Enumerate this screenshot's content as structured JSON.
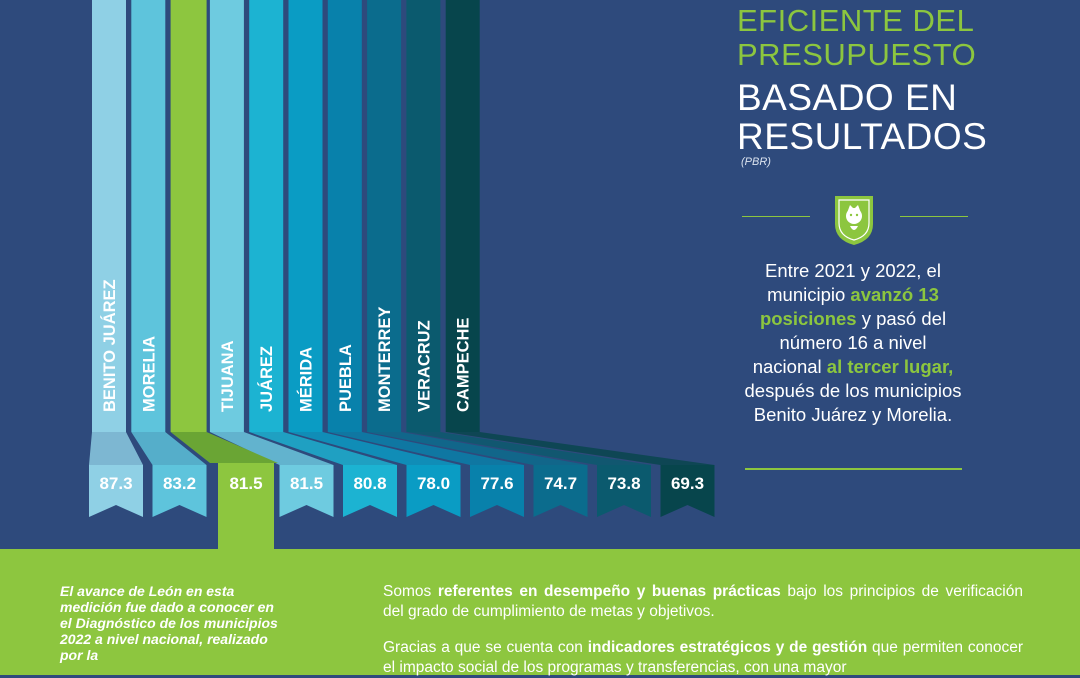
{
  "title": {
    "line1": "EFICIENTE DEL",
    "line2": "PRESUPUESTO",
    "line3": "BASADO EN",
    "line4": "RESULTADOS",
    "abbr": "(PBR)"
  },
  "description": {
    "p1": "Entre 2021 y 2022, el municipio ",
    "h1": "avanzó 13 posiciones",
    "p2": " y pasó del número 16 a nivel nacional ",
    "h2": "al tercer lugar,",
    "p3": " después de los municipios Benito Juárez y Morelia."
  },
  "note": "El avance de León en esta medición fue dado a conocer en el Diagnóstico de los municipios 2022 a nivel nacional, realizado por la",
  "paragraph1": {
    "a": "Somos ",
    "b": "referentes en desempeño y buenas prácticas",
    "c": " bajo los principios de verificación del grado de cumplimiento de metas y objetivos."
  },
  "paragraph2": {
    "a": "Gracias a que se cuenta con ",
    "b": "indicadores estratégicos y de gestión",
    "c": " que permiten conocer el impacto social de los programas y transferencias, con una mayor"
  },
  "colors": {
    "background": "#2e4a7c",
    "accent_green": "#8cc63f",
    "highlight_bar": "#8dc63f"
  },
  "chart_data": {
    "type": "bar",
    "categories": [
      "BENITO JUÁREZ",
      "MORELIA",
      "",
      "TIJUANA",
      "JUÁREZ",
      "MÉRIDA",
      "PUEBLA",
      "MONTERREY",
      "VERACRUZ",
      "CAMPECHE"
    ],
    "values": [
      87.3,
      83.2,
      81.5,
      81.5,
      80.8,
      78.0,
      77.6,
      74.7,
      73.8,
      69.3
    ],
    "value_labels": [
      "87.3",
      "83.2",
      "81.5",
      "81.5",
      "80.8",
      "78.0",
      "77.6",
      "74.7",
      "73.8",
      "69.3"
    ],
    "highlight_index": 2,
    "colors": [
      "#8fd0e5",
      "#5ec4dc",
      "#8dc63f",
      "#6ecbe0",
      "#1cb3d2",
      "#0a9cc4",
      "#0881ab",
      "#0b6c8d",
      "#0b5a6e",
      "#07454c"
    ]
  }
}
